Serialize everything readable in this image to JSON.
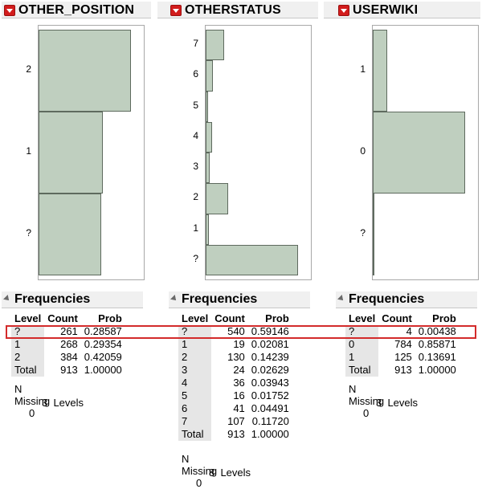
{
  "panels": [
    {
      "title": "OTHER_POSITION",
      "ticks": [
        "2",
        "1",
        "?"
      ],
      "bars": [
        0.42059,
        0.29354,
        0.28587
      ],
      "freq_title": "Frequencies",
      "headers": [
        "Level",
        "Count",
        "Prob"
      ],
      "rows": [
        {
          "level": "?",
          "count": "261",
          "prob": "0.28587"
        },
        {
          "level": "1",
          "count": "268",
          "prob": "0.29354"
        },
        {
          "level": "2",
          "count": "384",
          "prob": "0.42059"
        },
        {
          "level": "Total",
          "count": "913",
          "prob": "1.00000"
        }
      ],
      "missing_label": "N Missing",
      "missing_value": "0",
      "levels_text": "3  Levels"
    },
    {
      "title": "OTHERSTATUS",
      "ticks": [
        "7",
        "6",
        "5",
        "4",
        "3",
        "2",
        "1",
        "?"
      ],
      "bars": [
        0.1172,
        0.04491,
        0.01752,
        0.03943,
        0.02629,
        0.14239,
        0.02081,
        0.59146
      ],
      "freq_title": "Frequencies",
      "headers": [
        "Level",
        "Count",
        "Prob"
      ],
      "rows": [
        {
          "level": "?",
          "count": "540",
          "prob": "0.59146"
        },
        {
          "level": "1",
          "count": "19",
          "prob": "0.02081"
        },
        {
          "level": "2",
          "count": "130",
          "prob": "0.14239"
        },
        {
          "level": "3",
          "count": "24",
          "prob": "0.02629"
        },
        {
          "level": "4",
          "count": "36",
          "prob": "0.03943"
        },
        {
          "level": "5",
          "count": "16",
          "prob": "0.01752"
        },
        {
          "level": "6",
          "count": "41",
          "prob": "0.04491"
        },
        {
          "level": "7",
          "count": "107",
          "prob": "0.11720"
        },
        {
          "level": "Total",
          "count": "913",
          "prob": "1.00000"
        }
      ],
      "missing_label": "N Missing",
      "missing_value": "0",
      "levels_text": "8  Levels"
    },
    {
      "title": "USERWIKI",
      "ticks": [
        "1",
        "0",
        "?"
      ],
      "bars": [
        0.13691,
        0.85871,
        0.00438
      ],
      "freq_title": "Frequencies",
      "headers": [
        "Level",
        "Count",
        "Prob"
      ],
      "rows": [
        {
          "level": "?",
          "count": "4",
          "prob": "0.00438"
        },
        {
          "level": "0",
          "count": "784",
          "prob": "0.85871"
        },
        {
          "level": "1",
          "count": "125",
          "prob": "0.13691"
        },
        {
          "level": "Total",
          "count": "913",
          "prob": "1.00000"
        }
      ],
      "missing_label": "N Missing",
      "missing_value": "0",
      "levels_text": "3  Levels"
    }
  ],
  "colors": {
    "bar_fill": "#bfcfbf",
    "bar_border": "#5e6a5e",
    "highlight": "#d32b2b",
    "menu_button": "#d21c1c"
  }
}
